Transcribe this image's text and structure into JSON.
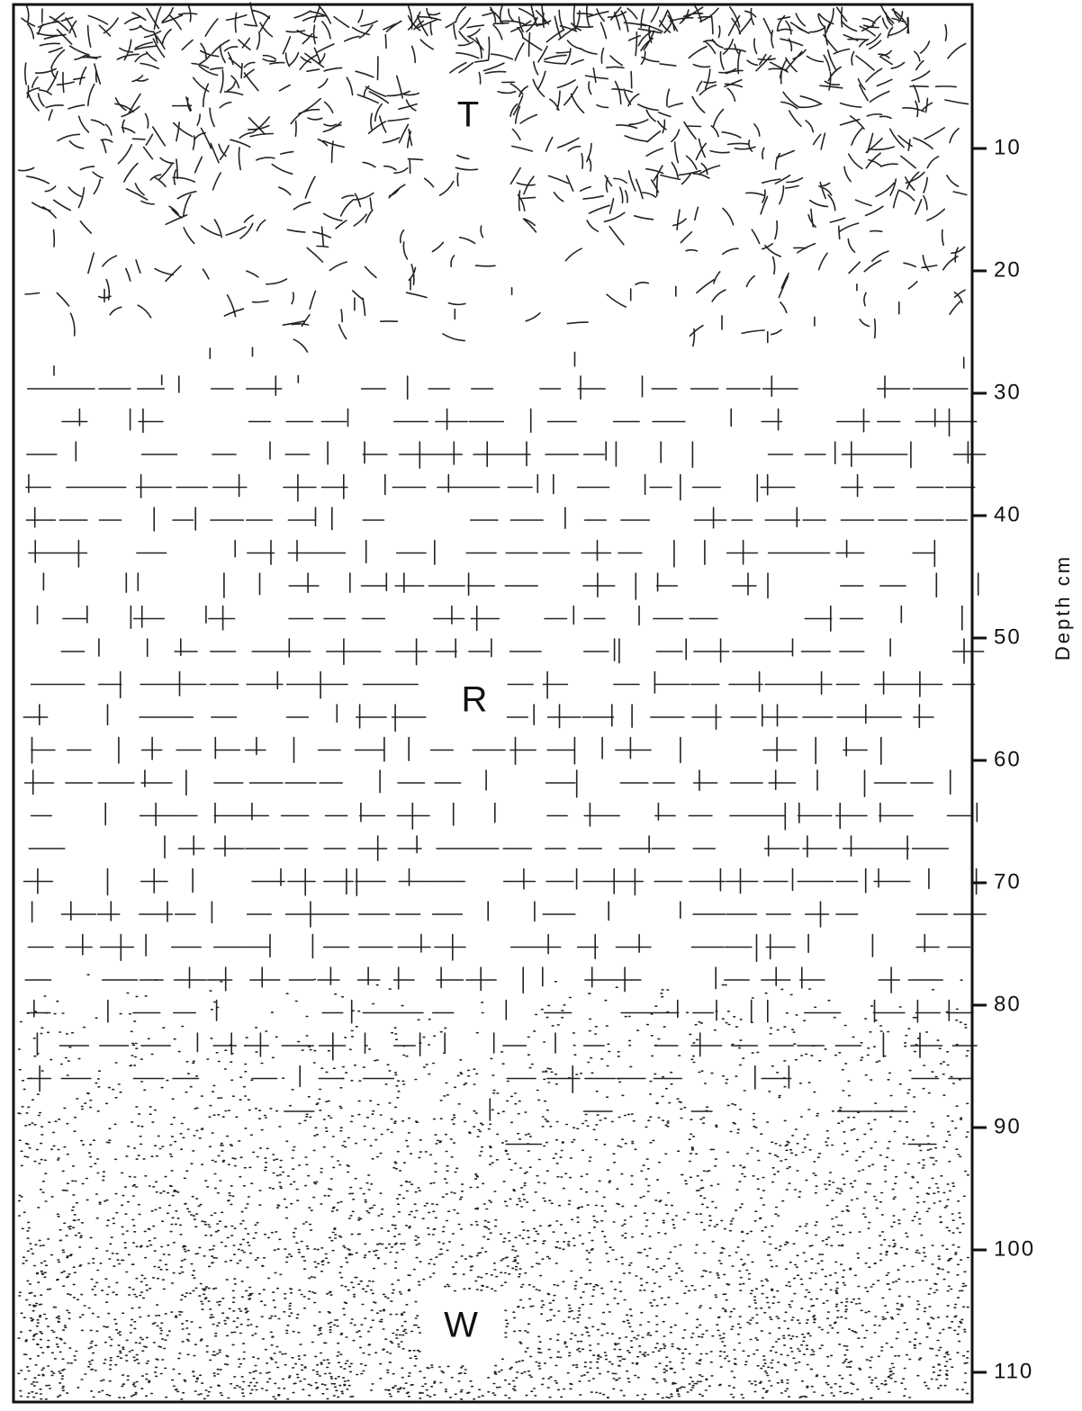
{
  "diagram": {
    "zones": [
      {
        "label": "T"
      },
      {
        "label": "R"
      },
      {
        "label": "W"
      }
    ],
    "depth_axis": {
      "label": "Depth cm",
      "ticks": [
        10,
        20,
        30,
        40,
        50,
        60,
        70,
        80,
        90,
        100,
        110
      ]
    }
  }
}
